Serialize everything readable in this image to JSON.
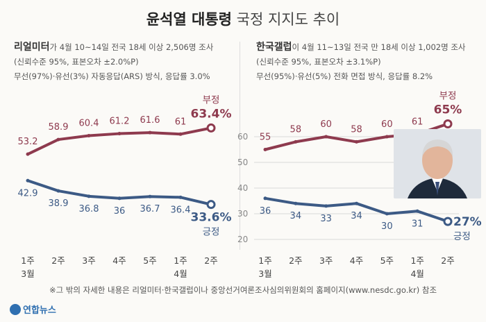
{
  "title": {
    "bold": "윤석열 대통령",
    "rest": "국정 지지도 추이"
  },
  "panels": [
    {
      "source": "리얼미터",
      "info1_rest": "가 4월 10~14일 전국 18세 이상 2,506명 조사",
      "info2": "(신뢰수준 95%, 표본오차 ±2.0%P)",
      "info3": "무선(97%)·유선(3%) 자동응답(ARS) 방식, 응답률 3.0%"
    },
    {
      "source": "한국갤럽",
      "info1_rest": "이 4월 11~13일 전국 만 18세 이상 1,002명 조사",
      "info2": "(신뢰수준 95%, 표본오차 ±3.1%P)",
      "info3": "무선(95%)·유선(5%) 전화 면접 방식, 응답률 8.2%"
    }
  ],
  "footnote": "※그 밖의 자세한 내용은 리얼미터·한국갤럽이나 중앙선거여론조사심의위원회의 홈페이지(www.nesdc.go.kr) 참조",
  "logo": "연합뉴스",
  "colors": {
    "negative": "#8e3a4e",
    "positive": "#3c5a85",
    "grid": "#d9d9d9"
  },
  "chart_data": [
    {
      "type": "line",
      "categories": [
        [
          "1주",
          "3월"
        ],
        [
          "2주"
        ],
        [
          "3주"
        ],
        [
          "4주"
        ],
        [
          "5주"
        ],
        [
          "1주",
          "4월"
        ],
        [
          "2주"
        ]
      ],
      "series": [
        {
          "name": "부정",
          "values": [
            53.2,
            58.9,
            60.4,
            61.2,
            61.6,
            61.0,
            63.4
          ],
          "last_label": "63.4%"
        },
        {
          "name": "긍정",
          "values": [
            42.9,
            38.9,
            36.8,
            36.0,
            36.7,
            36.4,
            33.6
          ],
          "last_label": "33.6%"
        }
      ],
      "ylim": [
        20,
        70
      ],
      "show_y_ticks": false
    },
    {
      "type": "line",
      "categories": [
        [
          "1주",
          "3월"
        ],
        [
          "2주"
        ],
        [
          "3주"
        ],
        [
          "4주"
        ],
        [
          "5주"
        ],
        [
          "1주",
          "4월"
        ],
        [
          "2주"
        ]
      ],
      "series": [
        {
          "name": "부정",
          "values": [
            55,
            58,
            60,
            58,
            60,
            61,
            65
          ],
          "last_label": "65%"
        },
        {
          "name": "긍정",
          "values": [
            36,
            34,
            33,
            34,
            30,
            31,
            27
          ],
          "last_label": "27%"
        }
      ],
      "ylim": [
        20,
        70
      ],
      "yticks": [
        20,
        30,
        40,
        50,
        60
      ],
      "show_y_ticks": true
    }
  ]
}
